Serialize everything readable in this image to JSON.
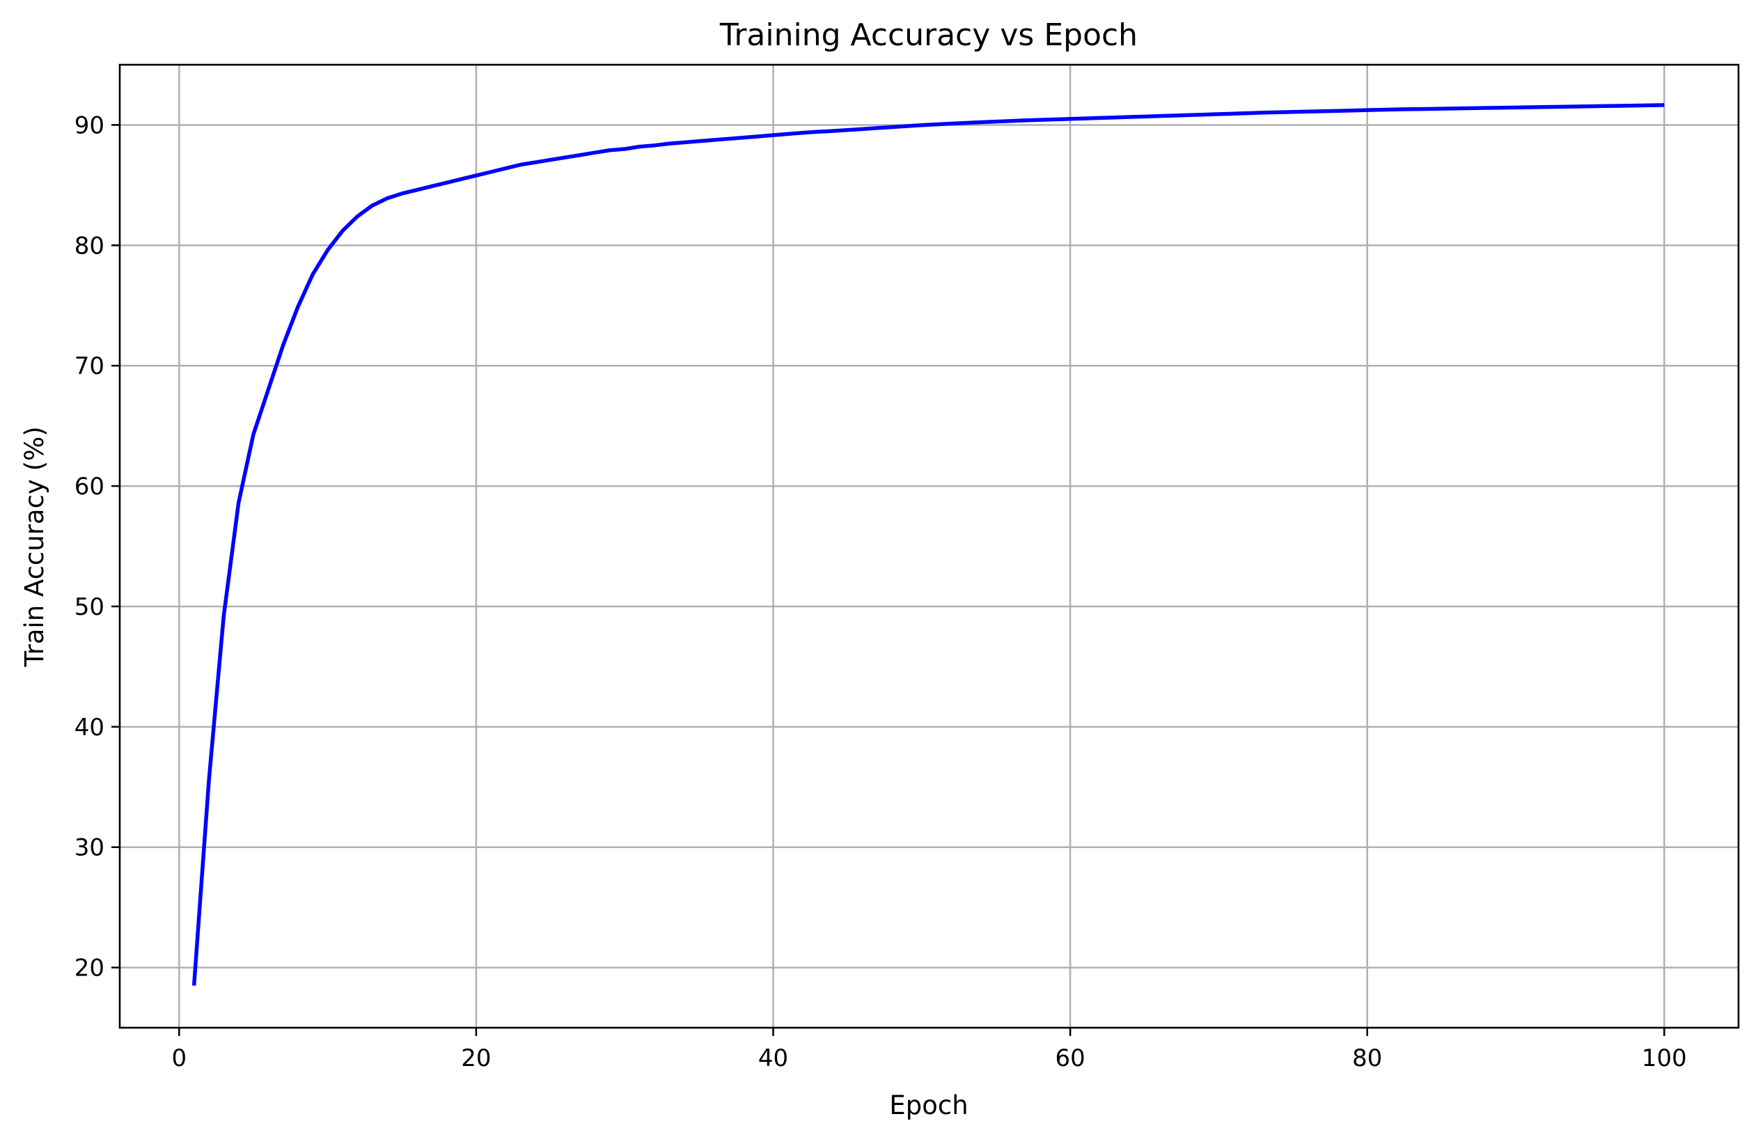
{
  "chart_data": {
    "type": "line",
    "title": "Training Accuracy vs Epoch",
    "xlabel": "Epoch",
    "ylabel": "Train Accuracy (%)",
    "xlim": [
      -4,
      105
    ],
    "ylim": [
      15,
      95
    ],
    "xticks": [
      0,
      20,
      40,
      60,
      80,
      100
    ],
    "yticks": [
      20,
      30,
      40,
      50,
      60,
      70,
      80,
      90
    ],
    "grid": true,
    "line_color": "#0000ff",
    "series": [
      {
        "x": [
          1,
          2,
          3,
          4,
          5,
          6,
          7,
          8,
          9,
          10,
          11,
          12,
          13,
          14,
          15,
          16,
          17,
          18,
          19,
          20,
          21,
          22,
          23,
          24,
          25,
          26,
          27,
          28,
          29,
          30,
          31,
          32,
          33,
          34,
          35,
          36,
          37,
          38,
          39,
          40,
          41,
          42,
          43,
          44,
          45,
          46,
          47,
          48,
          49,
          50,
          51,
          52,
          53,
          54,
          55,
          56,
          57,
          58,
          59,
          60,
          61,
          62,
          63,
          64,
          65,
          66,
          67,
          68,
          69,
          70,
          71,
          72,
          73,
          74,
          75,
          76,
          77,
          78,
          79,
          80,
          81,
          82,
          83,
          84,
          85,
          86,
          87,
          88,
          89,
          90,
          91,
          92,
          93,
          94,
          95,
          96,
          97,
          98,
          99,
          100
        ],
        "values": [
          18.5,
          35.5,
          49.2,
          58.6,
          64.3,
          68.0,
          71.7,
          74.9,
          77.6,
          79.6,
          81.2,
          82.4,
          83.3,
          83.9,
          84.3,
          84.6,
          84.9,
          85.2,
          85.5,
          85.8,
          86.1,
          86.4,
          86.7,
          86.9,
          87.1,
          87.3,
          87.5,
          87.7,
          87.9,
          88.0,
          88.2,
          88.3,
          88.45,
          88.55,
          88.65,
          88.75,
          88.85,
          88.95,
          89.05,
          89.15,
          89.25,
          89.35,
          89.43,
          89.5,
          89.58,
          89.66,
          89.74,
          89.82,
          89.9,
          89.98,
          90.05,
          90.11,
          90.17,
          90.23,
          90.28,
          90.33,
          90.38,
          90.42,
          90.46,
          90.5,
          90.54,
          90.58,
          90.62,
          90.66,
          90.7,
          90.74,
          90.78,
          90.82,
          90.86,
          90.9,
          90.94,
          90.98,
          91.02,
          91.05,
          91.08,
          91.11,
          91.14,
          91.17,
          91.2,
          91.23,
          91.26,
          91.29,
          91.31,
          91.33,
          91.35,
          91.37,
          91.39,
          91.41,
          91.43,
          91.45,
          91.47,
          91.49,
          91.51,
          91.53,
          91.55,
          91.57,
          91.59,
          91.61,
          91.63,
          91.65
        ]
      }
    ]
  }
}
